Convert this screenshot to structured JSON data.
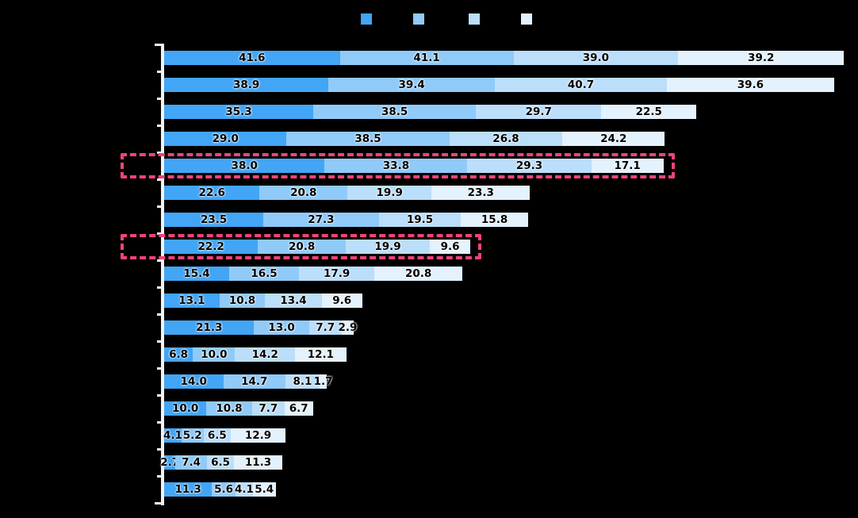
{
  "chart": {
    "background": "#000000",
    "axis_color": "#F2F2F2",
    "value_label_color": "#000000",
    "highlight_color": "#F1437A"
  },
  "legend": {
    "items": [
      {
        "label": "",
        "color": "#42A5F5"
      },
      {
        "label": "",
        "color": "#90CAF9"
      },
      {
        "label": "",
        "color": "#BBDEFB"
      },
      {
        "label": "",
        "color": "#E3F2FD"
      }
    ]
  },
  "chart_data": {
    "type": "bar",
    "orientation": "horizontal",
    "stacked": true,
    "title": "",
    "xlabel": "",
    "ylabel": "",
    "xlim": [
      0,
      162
    ],
    "grid": false,
    "legend_position": "top",
    "value_labels": true,
    "value_label_format": "one-decimal",
    "categories": [
      "",
      "",
      "",
      "",
      "",
      "",
      "",
      "",
      "",
      "",
      "",
      "",
      "",
      "",
      "",
      "",
      ""
    ],
    "series": [
      {
        "name": "",
        "color": "#42A5F5",
        "values": [
          41.6,
          38.9,
          35.3,
          29.0,
          38.0,
          22.6,
          23.5,
          22.2,
          15.4,
          13.1,
          21.3,
          6.8,
          14.0,
          10.0,
          4.1,
          2.7,
          11.3
        ]
      },
      {
        "name": "",
        "color": "#90CAF9",
        "values": [
          41.1,
          39.4,
          38.5,
          38.5,
          33.8,
          20.8,
          27.3,
          20.8,
          16.5,
          10.8,
          13.0,
          10.0,
          14.7,
          10.8,
          5.2,
          7.4,
          5.6
        ]
      },
      {
        "name": "",
        "color": "#BBDEFB",
        "values": [
          39.0,
          40.7,
          29.7,
          26.8,
          29.3,
          19.9,
          19.5,
          19.9,
          17.9,
          13.4,
          7.7,
          14.2,
          8.1,
          7.7,
          6.5,
          6.5,
          4.1
        ]
      },
      {
        "name": "",
        "color": "#E3F2FD",
        "values": [
          39.2,
          39.6,
          22.5,
          24.2,
          17.1,
          23.3,
          15.8,
          9.6,
          20.8,
          9.6,
          2.9,
          12.1,
          1.7,
          6.7,
          12.9,
          11.3,
          5.4
        ]
      }
    ],
    "highlighted_rows": [
      4,
      7
    ]
  }
}
